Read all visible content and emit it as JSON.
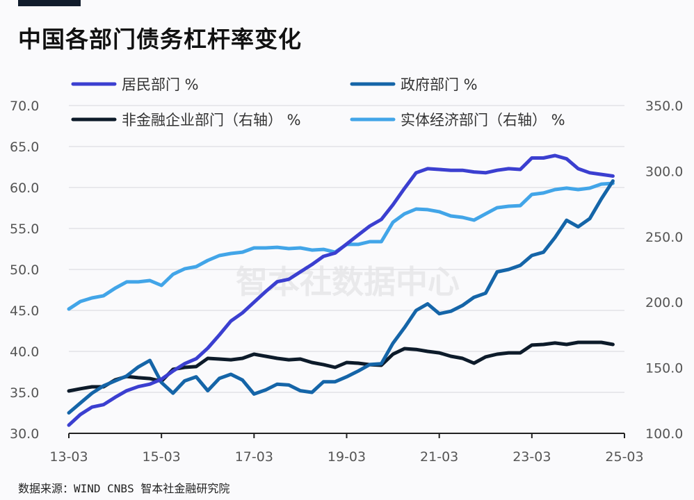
{
  "title": "中国各部门债务杠杆率变化",
  "source": "数据来源：WIND CNBS 智本社金融研究院",
  "watermark": "智本社数据中心",
  "chart_data": {
    "type": "line",
    "title": "中国各部门债务杠杆率变化",
    "x_start": "13-03",
    "x_step": "quarter",
    "xticks": [
      "13-03",
      "15-03",
      "17-03",
      "19-03",
      "21-03",
      "23-03",
      "25-03"
    ],
    "ylim_left": [
      30,
      70
    ],
    "yticks_left": [
      "30.0",
      "35.0",
      "40.0",
      "45.0",
      "50.0",
      "55.0",
      "60.0",
      "65.0",
      "70.0"
    ],
    "ylim_right": [
      100,
      350
    ],
    "yticks_right": [
      "100.0",
      "150.0",
      "200.0",
      "250.0",
      "300.0",
      "350.0"
    ],
    "grid": true,
    "legend_position": "top",
    "series": [
      {
        "name": "居民部门 %",
        "axis": "left",
        "color": "#3b3fd0",
        "values": [
          31.0,
          32.3,
          33.2,
          33.5,
          34.4,
          35.2,
          35.7,
          36.0,
          36.6,
          37.6,
          38.5,
          39.1,
          40.4,
          42.0,
          43.7,
          44.7,
          46.0,
          47.3,
          48.5,
          48.8,
          49.7,
          50.6,
          51.6,
          52.0,
          53.1,
          54.2,
          55.3,
          56.1,
          57.9,
          59.9,
          61.8,
          62.3,
          62.2,
          62.1,
          62.1,
          61.9,
          61.8,
          62.1,
          62.3,
          62.2,
          63.6,
          63.6,
          63.9,
          63.5,
          62.3,
          61.8,
          61.6,
          61.4
        ]
      },
      {
        "name": "政府部门 %",
        "axis": "left",
        "color": "#1565a8",
        "values": [
          32.5,
          33.7,
          34.9,
          35.8,
          36.4,
          37.0,
          38.1,
          38.9,
          36.2,
          34.9,
          36.4,
          36.9,
          35.2,
          36.7,
          37.2,
          36.5,
          34.8,
          35.3,
          36.0,
          35.9,
          35.2,
          35.0,
          36.3,
          36.3,
          36.9,
          37.6,
          38.4,
          38.5,
          41.0,
          42.9,
          45.0,
          45.8,
          44.6,
          44.9,
          45.6,
          46.6,
          47.1,
          49.7,
          50.0,
          50.5,
          51.7,
          52.1,
          53.9,
          56.0,
          55.2,
          56.2,
          58.6,
          60.8
        ]
      },
      {
        "name": "非金融企业部门（右轴） %",
        "axis": "right",
        "color": "#0d1b2a",
        "values": [
          132.3,
          134.0,
          135.5,
          135.5,
          140.8,
          143.4,
          142.4,
          141.8,
          139.7,
          148.8,
          150.3,
          150.9,
          157.2,
          156.7,
          156.1,
          157.2,
          160.4,
          158.8,
          157.2,
          156.1,
          156.7,
          154.0,
          152.4,
          150.3,
          154.0,
          153.5,
          152.4,
          151.9,
          160.4,
          164.6,
          164.0,
          162.5,
          161.4,
          158.8,
          157.2,
          153.5,
          158.3,
          160.4,
          161.4,
          161.4,
          167.3,
          167.8,
          168.9,
          167.8,
          169.4,
          169.4,
          169.4,
          167.8
        ]
      },
      {
        "name": "实体经济部门（右轴） %",
        "axis": "right",
        "color": "#42a5e8",
        "values": [
          194.8,
          200.6,
          203.3,
          204.9,
          210.7,
          215.5,
          215.5,
          216.5,
          212.8,
          221.3,
          225.5,
          227.1,
          231.9,
          235.6,
          237.2,
          238.2,
          241.4,
          241.4,
          241.9,
          240.9,
          241.4,
          239.8,
          240.3,
          238.2,
          244.1,
          244.1,
          246.2,
          246.2,
          261.0,
          267.4,
          271.1,
          270.6,
          269.0,
          265.8,
          264.7,
          262.6,
          267.4,
          272.1,
          273.2,
          273.7,
          282.2,
          283.3,
          285.9,
          287.0,
          285.9,
          287.0,
          290.1,
          290.7
        ]
      }
    ]
  }
}
